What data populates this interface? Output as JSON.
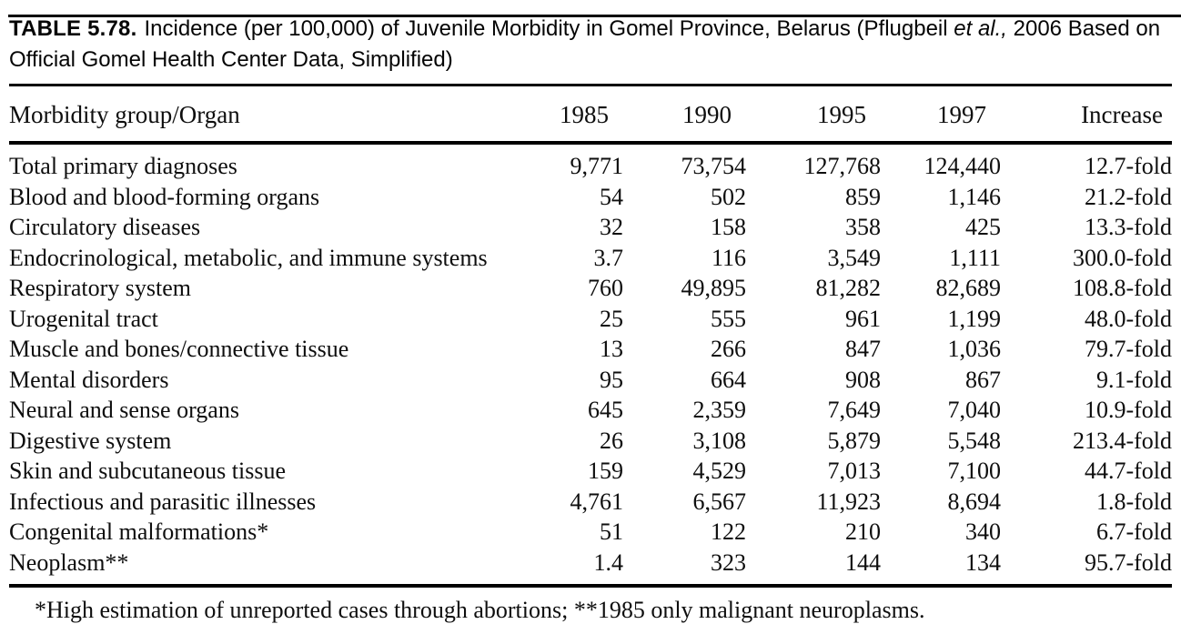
{
  "page": {
    "title": {
      "label": "TABLE 5.78.",
      "before_etal": "Incidence (per 100,000) of Juvenile Morbidity in Gomel Province, Belarus (Pflugbeil",
      "etal": "et al.,",
      "after_etal": "2006 Based on Official Gomel Health Center Data, Simplified)"
    },
    "footnote": "*High estimation of unreported cases through abortions; **1985 only malignant neuroplasms."
  },
  "table": {
    "columns": [
      "Morbidity group/Organ",
      "1985",
      "1990",
      "1995",
      "1997",
      "Increase"
    ],
    "rows": [
      {
        "organ": "Total primary diagnoses",
        "values": [
          "9,771",
          "73,754",
          "127,768",
          "124,440",
          "12.7-fold"
        ]
      },
      {
        "organ": "Blood and blood-forming organs",
        "values": [
          "54",
          "502",
          "859",
          "1,146",
          "21.2-fold"
        ]
      },
      {
        "organ": "Circulatory diseases",
        "values": [
          "32",
          "158",
          "358",
          "425",
          "13.3-fold"
        ]
      },
      {
        "organ": "Endocrinological, metabolic, and immune systems",
        "values": [
          "3.7",
          "116",
          "3,549",
          "1,111",
          "300.0-fold"
        ]
      },
      {
        "organ": "Respiratory system",
        "values": [
          "760",
          "49,895",
          "81,282",
          "82,689",
          "108.8-fold"
        ]
      },
      {
        "organ": "Urogenital tract",
        "values": [
          "25",
          "555",
          "961",
          "1,199",
          "48.0-fold"
        ]
      },
      {
        "organ": "Muscle and bones/connective tissue",
        "values": [
          "13",
          "266",
          "847",
          "1,036",
          "79.7-fold"
        ]
      },
      {
        "organ": "Mental disorders",
        "values": [
          "95",
          "664",
          "908",
          "867",
          "9.1-fold"
        ]
      },
      {
        "organ": "Neural and sense organs",
        "values": [
          "645",
          "2,359",
          "7,649",
          "7,040",
          "10.9-fold"
        ]
      },
      {
        "organ": "Digestive system",
        "values": [
          "26",
          "3,108",
          "5,879",
          "5,548",
          "213.4-fold"
        ]
      },
      {
        "organ": "Skin and subcutaneous tissue",
        "values": [
          "159",
          "4,529",
          "7,013",
          "7,100",
          "44.7-fold"
        ]
      },
      {
        "organ": "Infectious and parasitic illnesses",
        "values": [
          "4,761",
          "6,567",
          "11,923",
          "8,694",
          "1.8-fold"
        ]
      },
      {
        "organ": "Congenital malformations*",
        "values": [
          "51",
          "122",
          "210",
          "340",
          "6.7-fold"
        ]
      },
      {
        "organ": "Neoplasm**",
        "values": [
          "1.4",
          "323",
          "144",
          "134",
          "95.7-fold"
        ]
      }
    ]
  },
  "colors": {
    "text": "#0e0e0e",
    "rule": "#000000",
    "background": "#ffffff"
  }
}
